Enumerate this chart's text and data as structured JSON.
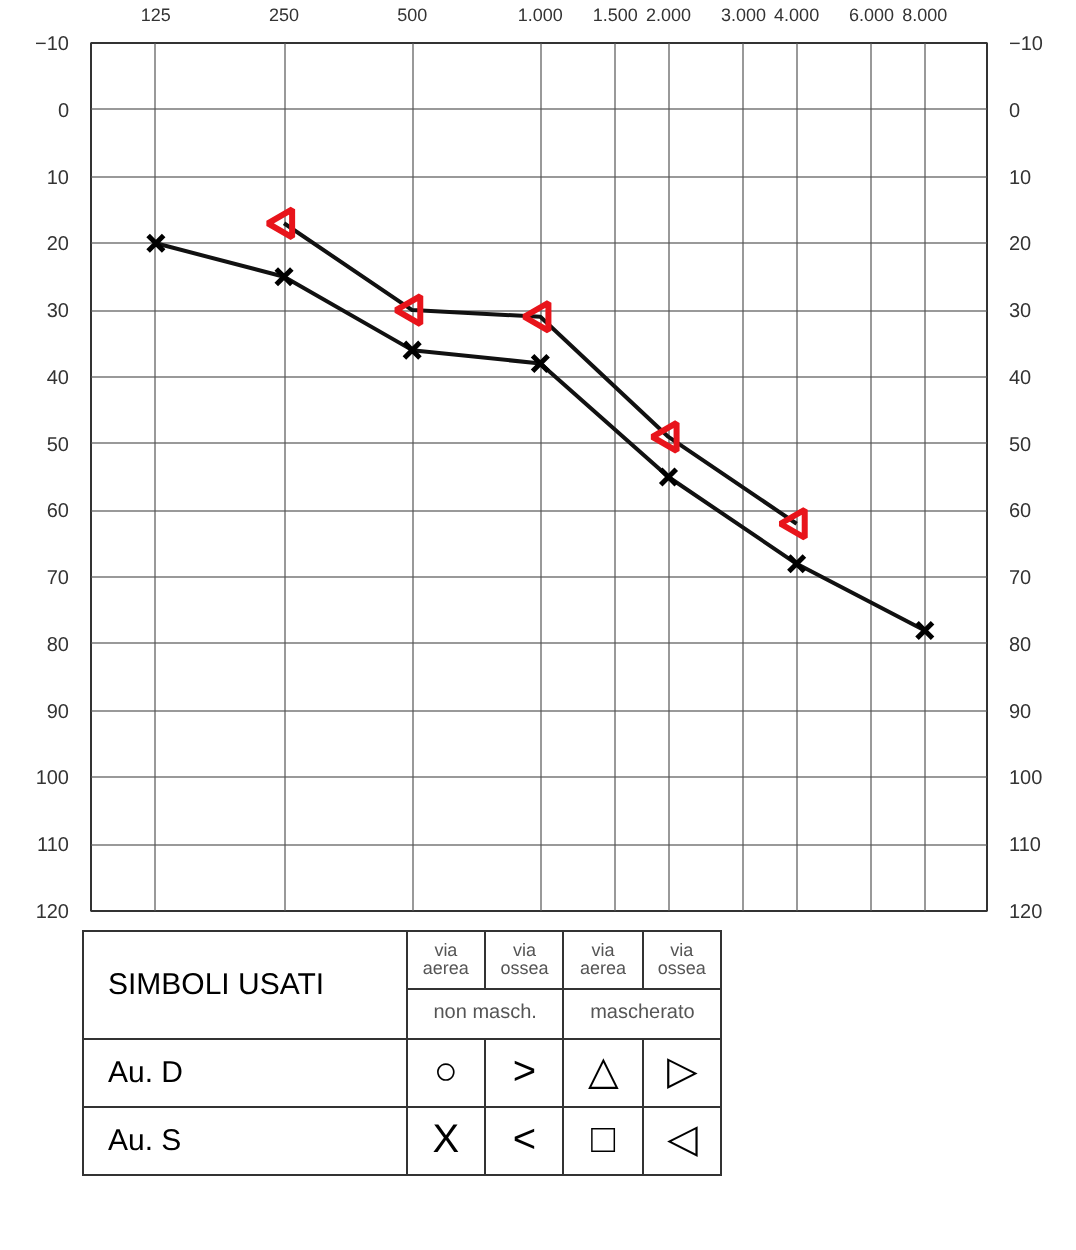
{
  "chart_data": {
    "type": "line",
    "x": [
      125,
      250,
      500,
      1000,
      2000,
      4000,
      8000
    ],
    "series": [
      {
        "color": "#000000",
        "marker": "cross",
        "values": [
          20,
          25,
          36,
          38,
          55,
          68,
          78
        ]
      },
      {
        "color": "#e8141b",
        "marker": "triangle",
        "x": [
          250,
          500,
          1000,
          2000,
          4000
        ],
        "values": [
          17,
          30,
          31,
          49,
          62
        ]
      }
    ],
    "log": "x",
    "xlim": [
      88,
      11200
    ],
    "xticks": [
      125,
      250,
      500,
      {
        "value": 1000,
        "label": "1.000"
      },
      {
        "value": 1500,
        "label": "1.500"
      },
      {
        "value": 2000,
        "label": "2.000"
      },
      {
        "value": 3000,
        "label": "3.000"
      },
      {
        "value": 4000,
        "label": "4.000"
      },
      {
        "value": 6000,
        "label": "6.000"
      },
      {
        "value": 8000,
        "label": "8.000"
      }
    ],
    "ylim": [
      120,
      -10
    ],
    "yticks": [
      -10,
      0,
      10,
      20,
      30,
      40,
      50,
      60,
      70,
      80,
      90,
      100,
      110,
      120
    ],
    "y2lim": [
      120,
      -10
    ],
    "y2ticks": [
      -10,
      0,
      10,
      20,
      30,
      40,
      50,
      60,
      70,
      80,
      90,
      100,
      110,
      120
    ],
    "grid": true,
    "line_style": "solid",
    "annotations": [
      "SIMBOLI USATI",
      "via aerea",
      "via ossea",
      "via aerea",
      "via ossea",
      "non masch.",
      "mascherato",
      "Au. D",
      "○",
      ">",
      "△",
      "▷",
      "Au. S",
      "X",
      "<",
      "□",
      "◁"
    ]
  }
}
